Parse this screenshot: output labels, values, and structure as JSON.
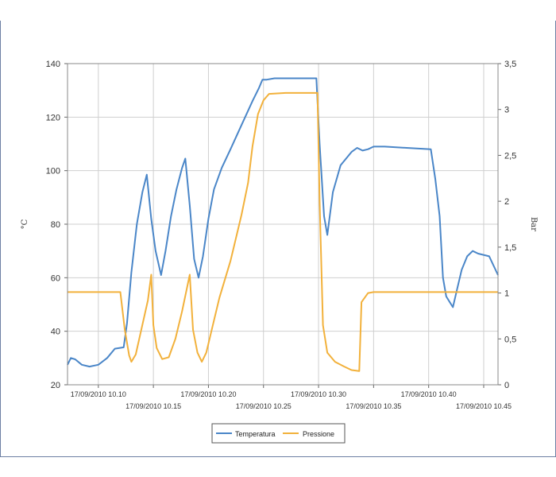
{
  "chart_data": {
    "type": "line",
    "title": "",
    "ylabel": "°C",
    "y2label": "Bar",
    "xlabel": "",
    "x_ticks": [
      "17/09/2010 10.10",
      "17/09/2010 10.15",
      "17/09/2010 10.20",
      "17/09/2010 10.25",
      "17/09/2010 10.30",
      "17/09/2010 10.35",
      "17/09/2010 10.40",
      "17/09/2010 10.45"
    ],
    "x_tick_minutes": [
      10,
      15,
      20,
      25,
      30,
      35,
      40,
      45
    ],
    "xlim_minutes": [
      7.2,
      46.3
    ],
    "ylim": [
      20,
      140
    ],
    "y_ticks": [
      "20",
      "40",
      "60",
      "80",
      "100",
      "120",
      "140"
    ],
    "y2lim": [
      0,
      3.5
    ],
    "y2_ticks": [
      "0",
      "0,5",
      "1",
      "1,5",
      "2",
      "2,5",
      "3",
      "3,5"
    ],
    "grid": true,
    "legend_position": "bottom-center",
    "series": [
      {
        "name": "Temperatura",
        "axis": "left",
        "color": "#4a86c8",
        "points": [
          [
            7.2,
            27.5
          ],
          [
            7.5,
            30
          ],
          [
            7.9,
            29.5
          ],
          [
            8.5,
            27.5
          ],
          [
            9.2,
            26.8
          ],
          [
            10,
            27.5
          ],
          [
            10.8,
            30
          ],
          [
            11.5,
            33.5
          ],
          [
            12.3,
            34
          ],
          [
            12.6,
            43
          ],
          [
            13,
            62
          ],
          [
            13.5,
            80
          ],
          [
            14,
            92
          ],
          [
            14.4,
            98.5
          ],
          [
            14.8,
            82
          ],
          [
            15.2,
            70
          ],
          [
            15.7,
            61
          ],
          [
            16.1,
            70
          ],
          [
            16.6,
            83
          ],
          [
            17.1,
            93
          ],
          [
            17.6,
            101
          ],
          [
            17.9,
            104.5
          ],
          [
            18.3,
            87
          ],
          [
            18.7,
            67
          ],
          [
            19.1,
            60
          ],
          [
            19.5,
            68
          ],
          [
            20,
            82
          ],
          [
            20.5,
            93
          ],
          [
            21.2,
            101
          ],
          [
            22,
            108
          ],
          [
            23,
            117
          ],
          [
            24,
            126
          ],
          [
            24.6,
            131
          ],
          [
            24.9,
            134
          ],
          [
            25.3,
            134
          ],
          [
            26,
            134.5
          ],
          [
            28,
            134.5
          ],
          [
            29.8,
            134.5
          ],
          [
            30.1,
            110
          ],
          [
            30.5,
            83
          ],
          [
            30.8,
            76
          ],
          [
            31.3,
            92
          ],
          [
            32,
            102
          ],
          [
            33,
            107
          ],
          [
            33.5,
            108.5
          ],
          [
            34,
            107.5
          ],
          [
            34.5,
            108
          ],
          [
            35,
            109
          ],
          [
            36,
            109
          ],
          [
            38,
            108.5
          ],
          [
            40.2,
            108
          ],
          [
            40.6,
            97
          ],
          [
            41,
            83
          ],
          [
            41.3,
            60
          ],
          [
            41.6,
            53
          ],
          [
            42.2,
            49
          ],
          [
            42.6,
            56
          ],
          [
            43,
            63
          ],
          [
            43.5,
            68
          ],
          [
            44,
            70
          ],
          [
            44.5,
            69
          ],
          [
            45.5,
            68
          ],
          [
            46.3,
            61
          ]
        ]
      },
      {
        "name": "Pressione",
        "axis": "right",
        "color": "#f2b13b",
        "points": [
          [
            7.2,
            1.01
          ],
          [
            12,
            1.01
          ],
          [
            12.4,
            0.6
          ],
          [
            12.8,
            0.32
          ],
          [
            13,
            0.25
          ],
          [
            13.4,
            0.33
          ],
          [
            13.9,
            0.6
          ],
          [
            14.5,
            0.92
          ],
          [
            14.8,
            1.2
          ],
          [
            15,
            0.65
          ],
          [
            15.3,
            0.4
          ],
          [
            15.8,
            0.28
          ],
          [
            16.4,
            0.3
          ],
          [
            17,
            0.5
          ],
          [
            17.6,
            0.8
          ],
          [
            18.3,
            1.2
          ],
          [
            18.6,
            0.6
          ],
          [
            19,
            0.35
          ],
          [
            19.4,
            0.25
          ],
          [
            19.8,
            0.35
          ],
          [
            20.3,
            0.6
          ],
          [
            21,
            0.95
          ],
          [
            22,
            1.35
          ],
          [
            23,
            1.85
          ],
          [
            23.6,
            2.2
          ],
          [
            24,
            2.6
          ],
          [
            24.5,
            2.95
          ],
          [
            25,
            3.1
          ],
          [
            25.5,
            3.17
          ],
          [
            27,
            3.18
          ],
          [
            29.9,
            3.18
          ],
          [
            30.1,
            2.0
          ],
          [
            30.4,
            0.65
          ],
          [
            30.8,
            0.35
          ],
          [
            31.5,
            0.25
          ],
          [
            32.3,
            0.2
          ],
          [
            33,
            0.16
          ],
          [
            33.7,
            0.15
          ],
          [
            33.9,
            0.9
          ],
          [
            34.5,
            1.0
          ],
          [
            35,
            1.01
          ],
          [
            40,
            1.01
          ],
          [
            46.3,
            1.01
          ]
        ]
      }
    ]
  }
}
